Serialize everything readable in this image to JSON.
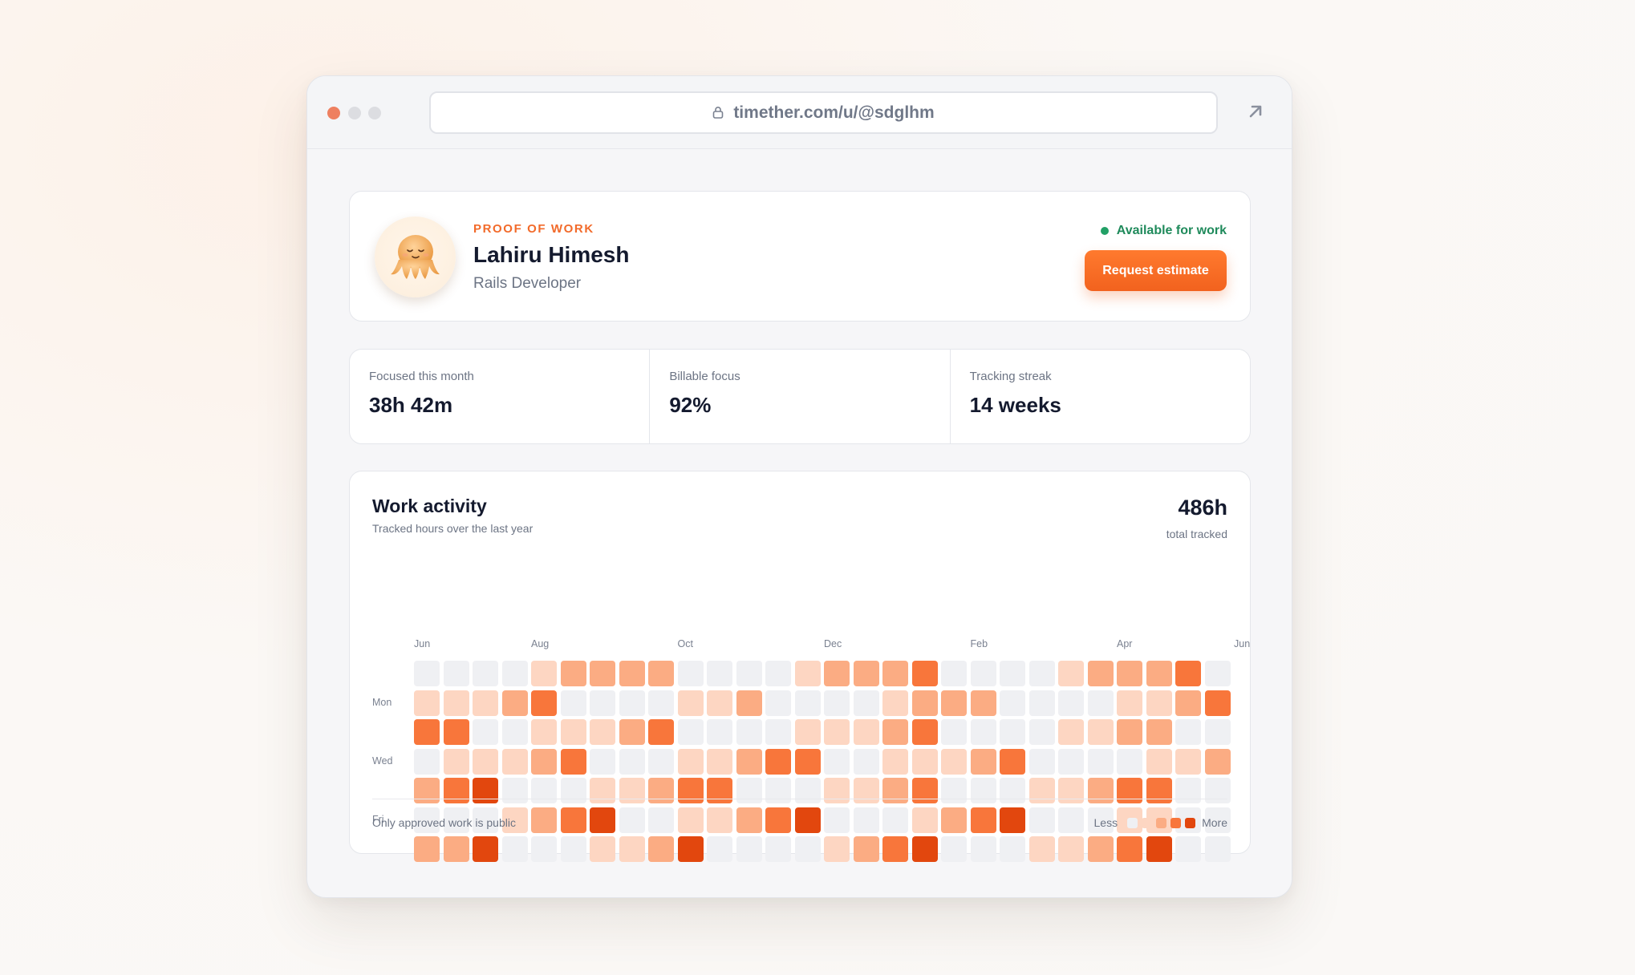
{
  "browser": {
    "url": "timether.com/u/@sdglhm"
  },
  "profile": {
    "eyebrow": "PROOF OF WORK",
    "name": "Lahiru Himesh",
    "role": "Rails Developer",
    "availability": "Available for work",
    "cta_label": "Request estimate"
  },
  "stats": [
    {
      "label": "Focused this month",
      "value": "38h 42m"
    },
    {
      "label": "Billable focus",
      "value": "92%"
    },
    {
      "label": "Tracking streak",
      "value": "14 weeks"
    }
  ],
  "activity": {
    "title": "Work activity",
    "subtitle": "Tracked hours over the last year",
    "total": "486h",
    "total_label": "total tracked",
    "months": [
      {
        "label": "Jun",
        "week": 0
      },
      {
        "label": "Aug",
        "week": 4
      },
      {
        "label": "Oct",
        "week": 9
      },
      {
        "label": "Dec",
        "week": 14
      },
      {
        "label": "Feb",
        "week": 19
      },
      {
        "label": "Apr",
        "week": 24
      },
      {
        "label": "Jun",
        "week": 28
      }
    ],
    "day_labels": [
      {
        "label": "Mon",
        "row": 1
      },
      {
        "label": "Wed",
        "row": 3
      },
      {
        "label": "Fri",
        "row": 5
      }
    ],
    "levels": [
      "0000122220000122230000122230000",
      "1112300001120000122200001123",
      "3300111230000111230000112200000",
      "01112300011233001112300001122",
      "2340001123300011230001123300",
      "0001234001123400012340001100",
      "2240001124000012340001123400"
    ],
    "footer_note": "Only approved work is public",
    "legend_less": "Less",
    "legend_more": "More",
    "level_colors": [
      "#eff0f3",
      "#fdd6c2",
      "#fbac83",
      "#f8763b",
      "#e2470e"
    ]
  }
}
